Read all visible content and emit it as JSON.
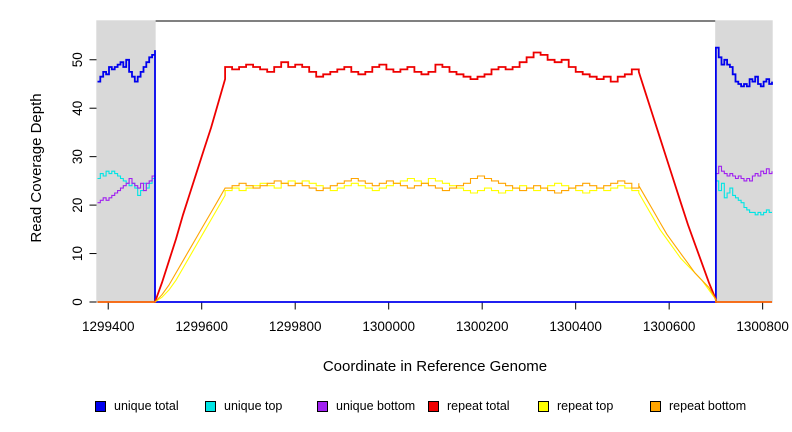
{
  "chart_data": {
    "type": "line",
    "title": "",
    "xlabel": "Coordinate in Reference Genome",
    "ylabel": "Read Coverage Depth",
    "x_ticks": [
      1299400,
      1299600,
      1299800,
      1300000,
      1300200,
      1300400,
      1300600,
      1300800
    ],
    "y_ticks": [
      0,
      10,
      20,
      30,
      40,
      50
    ],
    "x_range": [
      1299376,
      1300820
    ],
    "y_range": [
      0,
      58
    ],
    "grid": false,
    "legend_position": "bottom",
    "shaded_regions": [
      {
        "x_start": 1299376,
        "x_end": 1299500,
        "color": "#D9D9D9"
      },
      {
        "x_start": 1300700,
        "x_end": 1300820,
        "color": "#D9D9D9"
      }
    ],
    "series": [
      {
        "name": "unique total",
        "color": "#0000EE",
        "segments": [
          {
            "x0": 1299377,
            "dx": 6.15,
            "values": [
              45.5,
              46.5,
              47.5,
              47,
              48.5,
              48,
              48.5,
              49,
              49.5,
              48.5,
              50,
              47.5,
              46.5,
              45.5,
              46.5,
              47.5,
              48.5,
              49.5,
              50.5,
              51,
              52
            ]
          },
          {
            "points": [
              [
                1299500,
                0
              ],
              [
                1300700,
                0
              ]
            ]
          },
          {
            "x0": 1300700,
            "dx": 6,
            "values": [
              52.5,
              50.5,
              49,
              50,
              49,
              48.5,
              47,
              45.5,
              45,
              44.5,
              45,
              44.5,
              46,
              45.5,
              46.5,
              45,
              44.5,
              45.5,
              46,
              45,
              45.5
            ]
          }
        ]
      },
      {
        "name": "unique top",
        "color": "#00E5E5",
        "segments": [
          {
            "x0": 1299377,
            "dx": 6.15,
            "values": [
              25.5,
              26.5,
              26,
              27,
              26.5,
              27,
              26.5,
              26,
              25.5,
              25,
              24.5,
              24,
              24.5,
              23.5,
              22,
              23,
              24.5,
              23.5,
              24.5,
              25.5,
              26
            ]
          },
          {
            "points": [
              [
                1299500,
                0
              ],
              [
                1300700,
                0
              ]
            ]
          },
          {
            "x0": 1300700,
            "dx": 6,
            "values": [
              25,
              23,
              24.5,
              21.5,
              22.5,
              23.5,
              22,
              21.5,
              21,
              20.5,
              19.5,
              19,
              18.5,
              18.5,
              18,
              18.5,
              18,
              18.5,
              19,
              18.5,
              18.5
            ]
          }
        ]
      },
      {
        "name": "unique bottom",
        "color": "#A020F0",
        "segments": [
          {
            "x0": 1299377,
            "dx": 6.15,
            "values": [
              20.5,
              21,
              21.5,
              21,
              21.5,
              22,
              22.5,
              23,
              23.5,
              24,
              24.5,
              25.5,
              24.5,
              24,
              23.5,
              24.5,
              23,
              24.5,
              25,
              26,
              26.5
            ]
          },
          {
            "points": [
              [
                1299500,
                0
              ],
              [
                1300700,
                0
              ]
            ]
          },
          {
            "x0": 1300700,
            "dx": 6,
            "values": [
              26.5,
              28,
              27,
              26.5,
              26,
              26.5,
              26,
              25.5,
              26,
              25.5,
              25,
              25.5,
              25,
              26,
              26.5,
              26,
              27,
              26.5,
              27.5,
              26.5,
              27
            ]
          }
        ]
      },
      {
        "name": "repeat total",
        "color": "#EE0000",
        "segments": [
          {
            "points": [
              [
                1299377,
                0
              ],
              [
                1299500,
                0
              ]
            ]
          },
          {
            "x0": 1299500,
            "dx": 15,
            "values": [
              0,
              4,
              8.5,
              13,
              18,
              22.5,
              27,
              31.5,
              36,
              41,
              46
            ]
          },
          {
            "x0": 1299650,
            "dx": 15,
            "values": [
              48.5,
              48,
              48.5,
              49,
              48.5,
              48,
              47.5,
              48.5,
              49.5,
              48.5,
              49,
              48.5,
              47.5,
              46.5,
              47,
              47.5,
              48,
              48.5,
              47.5,
              47,
              47.5,
              48.5,
              49,
              48,
              47.5,
              48,
              48.5,
              47.5,
              47,
              47.5,
              49,
              48.5,
              47.5,
              47,
              46.5,
              46,
              46.5,
              47,
              48,
              48.5,
              48,
              48.5,
              49.5,
              50.5,
              51.5,
              51,
              50,
              49.5,
              50,
              48.5,
              47.5,
              47,
              46.5,
              46,
              46.5,
              45.5,
              46.5,
              47,
              48,
              47.5
            ]
          },
          {
            "x0": 1300535,
            "dx": 15,
            "values": [
              47.5,
              43,
              38.5,
              34,
              29.5,
              25,
              20.5,
              16,
              12,
              8,
              4,
              0.5
            ]
          },
          {
            "points": [
              [
                1300700,
                0
              ],
              [
                1300820,
                0
              ]
            ]
          }
        ]
      },
      {
        "name": "repeat top",
        "color": "#FFFF00",
        "segments": [
          {
            "points": [
              [
                1299377,
                0
              ],
              [
                1299500,
                0
              ]
            ]
          },
          {
            "x0": 1299500,
            "dx": 15,
            "values": [
              0,
              1,
              2.5,
              4.5,
              7,
              9.5,
              12,
              14.5,
              17,
              19.5,
              22
            ]
          },
          {
            "x0": 1299650,
            "dx": 15,
            "values": [
              23,
              23.5,
              23,
              23.5,
              24,
              24.5,
              24,
              23.5,
              24.5,
              25,
              24.5,
              25,
              24.5,
              24,
              23.5,
              23,
              23.5,
              24,
              24.5,
              24,
              23.5,
              23,
              23.5,
              24,
              24.5,
              25,
              25.5,
              25,
              24.5,
              25.5,
              25,
              24.5,
              24,
              23.5,
              23,
              22.5,
              23,
              23.5,
              23,
              22.5,
              23,
              23.5,
              24,
              23.5,
              23,
              23.5,
              24,
              24.5,
              24,
              23.5,
              23,
              22.5,
              23,
              23.5,
              23,
              23.5,
              24,
              23.5,
              23,
              22.5
            ]
          },
          {
            "x0": 1300535,
            "dx": 15,
            "values": [
              22.5,
              20,
              17.5,
              15,
              13,
              11,
              9,
              7.5,
              6,
              4.5,
              2.5,
              0.5
            ]
          },
          {
            "points": [
              [
                1300700,
                0
              ],
              [
                1300820,
                0
              ]
            ]
          }
        ]
      },
      {
        "name": "repeat bottom",
        "color": "#FFA500",
        "segments": [
          {
            "points": [
              [
                1299377,
                0
              ],
              [
                1299500,
                0
              ]
            ]
          },
          {
            "x0": 1299500,
            "dx": 15,
            "values": [
              0,
              1.5,
              3.5,
              6,
              8.5,
              11,
              13.5,
              16,
              18.5,
              21,
              23.5
            ]
          },
          {
            "x0": 1299650,
            "dx": 15,
            "values": [
              23.5,
              24,
              24.5,
              24,
              23.5,
              24,
              24.5,
              25,
              24.5,
              24,
              24.5,
              24,
              23.5,
              23,
              23.5,
              24,
              24.5,
              25,
              25.5,
              25,
              24.5,
              24,
              24.5,
              25,
              24.5,
              24,
              23.5,
              24,
              24.5,
              24,
              23.5,
              23,
              23.5,
              24,
              24.5,
              25.5,
              26,
              25.5,
              25,
              24.5,
              24,
              23.5,
              23,
              23.5,
              24,
              23.5,
              23,
              22.5,
              23,
              23.5,
              24,
              24.5,
              24,
              23.5,
              24,
              24.5,
              25,
              24.5,
              23.5,
              24.5
            ]
          },
          {
            "x0": 1300535,
            "dx": 15,
            "values": [
              24,
              21.5,
              19,
              16.5,
              14,
              12,
              10,
              8,
              6,
              4.5,
              3,
              0.5
            ]
          },
          {
            "points": [
              [
                1300700,
                0
              ],
              [
                1300820,
                0
              ]
            ]
          }
        ]
      }
    ]
  }
}
